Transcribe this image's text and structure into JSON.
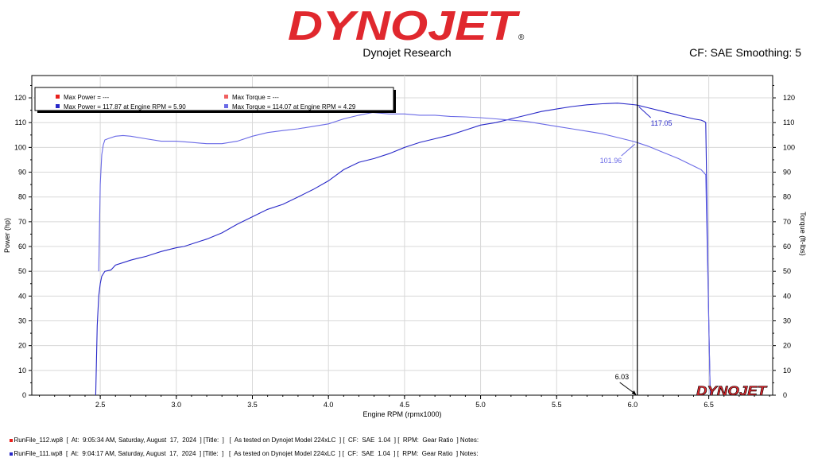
{
  "header": {
    "logo_text": "DYNOJET",
    "subtitle": "Dynojet Research",
    "cf_info": "CF: SAE Smoothing: 5"
  },
  "colors": {
    "logo_red": "#e0282e",
    "run1": "#e8201c",
    "run1_light": "#f06060",
    "power": "#2828c8",
    "torque": "#6a6ae6"
  },
  "chart_data": {
    "type": "line",
    "xlabel": "Engine RPM (rpmx1000)",
    "ylabel": "Power (hp)",
    "y2label": "Torque (ft-lbs)",
    "xlim": [
      2.05,
      6.92
    ],
    "ylim": [
      0,
      129
    ],
    "y2lim": [
      0,
      129
    ],
    "x_ticks": [
      "2.5",
      "3.0",
      "3.5",
      "4.0",
      "4.5",
      "5.0",
      "5.5",
      "6.0",
      "6.5"
    ],
    "y_ticks": [
      0,
      10,
      20,
      30,
      40,
      50,
      60,
      70,
      80,
      90,
      100,
      110,
      120
    ],
    "legend": [
      {
        "color": "#e8201c",
        "text": "Max Power = ---"
      },
      {
        "color": "#f06060",
        "text": "Max Torque = ---"
      },
      {
        "color": "#2828c8",
        "text": "Max Power = 117.87 at Engine RPM = 5.90"
      },
      {
        "color": "#6a6ae6",
        "text": "Max Torque = 114.07 at Engine RPM = 4.29"
      }
    ],
    "cursor": {
      "x": 6.03,
      "label": "6.03",
      "power_value": "117.05",
      "torque_value": "101.96"
    },
    "series": [
      {
        "name": "Power",
        "axis": "left",
        "x": [
          2.47,
          2.48,
          2.49,
          2.5,
          2.51,
          2.53,
          2.57,
          2.6,
          2.65,
          2.7,
          2.75,
          2.8,
          2.85,
          2.9,
          3.0,
          3.05,
          3.1,
          3.2,
          3.3,
          3.4,
          3.5,
          3.6,
          3.7,
          3.8,
          3.9,
          4.0,
          4.1,
          4.2,
          4.3,
          4.4,
          4.5,
          4.6,
          4.7,
          4.8,
          4.9,
          5.0,
          5.1,
          5.2,
          5.3,
          5.4,
          5.5,
          5.6,
          5.7,
          5.8,
          5.9,
          6.0,
          6.03,
          6.1,
          6.2,
          6.3,
          6.4,
          6.45,
          6.47,
          6.48,
          6.5,
          6.51
        ],
        "values": [
          0,
          28,
          40,
          45,
          48,
          50,
          50.5,
          52.5,
          53.5,
          54.5,
          55.3,
          56,
          57,
          58,
          59.5,
          60,
          61,
          63,
          65.5,
          69,
          72,
          75,
          77,
          80,
          83,
          86.5,
          91,
          94,
          95.5,
          97.5,
          100,
          102,
          103.5,
          105,
          107,
          109,
          110,
          111.5,
          113,
          114.5,
          115.5,
          116.5,
          117.2,
          117.6,
          117.87,
          117.3,
          117.05,
          116,
          114.5,
          113,
          111.5,
          111,
          110.5,
          110,
          30,
          0
        ]
      },
      {
        "name": "Torque",
        "axis": "right",
        "x": [
          2.49,
          2.5,
          2.51,
          2.52,
          2.53,
          2.55,
          2.6,
          2.65,
          2.7,
          2.8,
          2.9,
          3.0,
          3.1,
          3.2,
          3.3,
          3.4,
          3.5,
          3.6,
          3.7,
          3.8,
          3.9,
          4.0,
          4.1,
          4.2,
          4.29,
          4.4,
          4.5,
          4.6,
          4.7,
          4.8,
          4.9,
          5.0,
          5.1,
          5.2,
          5.3,
          5.4,
          5.5,
          5.6,
          5.7,
          5.8,
          5.9,
          6.0,
          6.03,
          6.1,
          6.2,
          6.3,
          6.4,
          6.45,
          6.48,
          6.5,
          6.51
        ],
        "values": [
          50,
          85,
          97,
          101,
          103,
          103.5,
          104.5,
          104.8,
          104.5,
          103.5,
          102.5,
          102.5,
          102,
          101.5,
          101.5,
          102.5,
          104.5,
          106,
          106.8,
          107.5,
          108.5,
          109.5,
          111.5,
          113,
          114.07,
          113.5,
          113.5,
          113,
          113,
          112.5,
          112.3,
          112,
          111.5,
          111,
          110.5,
          109.5,
          108.5,
          107.5,
          106.5,
          105.5,
          104,
          102.5,
          101.96,
          100.5,
          98,
          95.5,
          92.5,
          91,
          89,
          30,
          0
        ]
      }
    ]
  },
  "runs": [
    {
      "color": "#e8201c",
      "text": "RunFile_112.wp8  [  At:  9:05:34 AM, Saturday, August  17,  2024  ] [Title:  ]   [  As tested on Dynojet Model 224xLC  ] [  CF:  SAE  1.04  ] [  RPM:  Gear Ratio  ] Notes:"
    },
    {
      "color": "#2828c8",
      "text": "RunFile_111.wp8  [  At:  9:04:17 AM, Saturday, August  17,  2024  ] [Title:  ]   [  As tested on Dynojet Model 224xLC  ] [  CF:  SAE  1.04  ] [  RPM:  Gear Ratio  ] Notes:"
    }
  ]
}
